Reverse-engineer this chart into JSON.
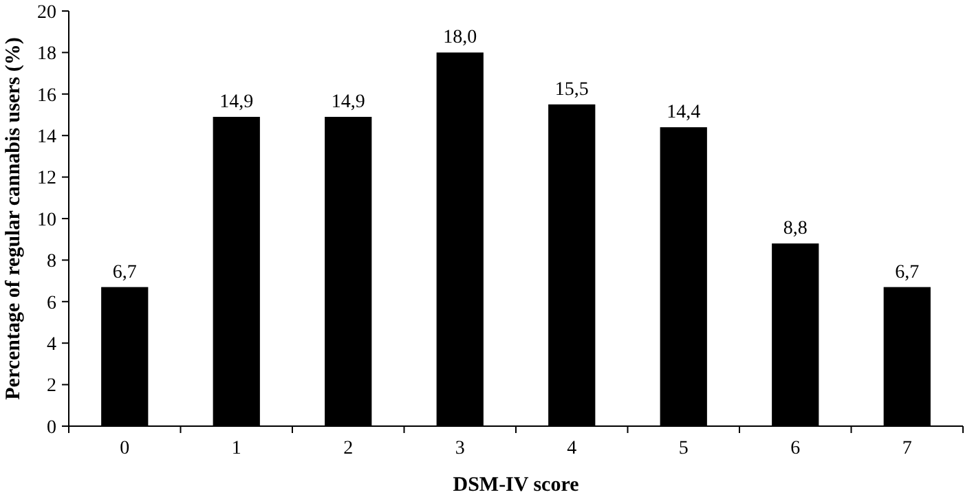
{
  "chart_data": {
    "type": "bar",
    "xlabel": "DSM-IV score",
    "ylabel": "Percentage of regular cannabis users (%)",
    "categories": [
      "0",
      "1",
      "2",
      "3",
      "4",
      "5",
      "6",
      "7"
    ],
    "values": [
      6.7,
      14.9,
      14.9,
      18.0,
      15.5,
      14.4,
      8.8,
      6.7
    ],
    "value_labels": [
      "6,7",
      "14,9",
      "14,9",
      "18,0",
      "15,5",
      "14,4",
      "8,8",
      "6,7"
    ],
    "color": "#000000",
    "ylim": [
      0,
      20
    ],
    "yticks": [
      0,
      2,
      4,
      6,
      8,
      10,
      12,
      14,
      16,
      18,
      20
    ],
    "grid": false
  }
}
